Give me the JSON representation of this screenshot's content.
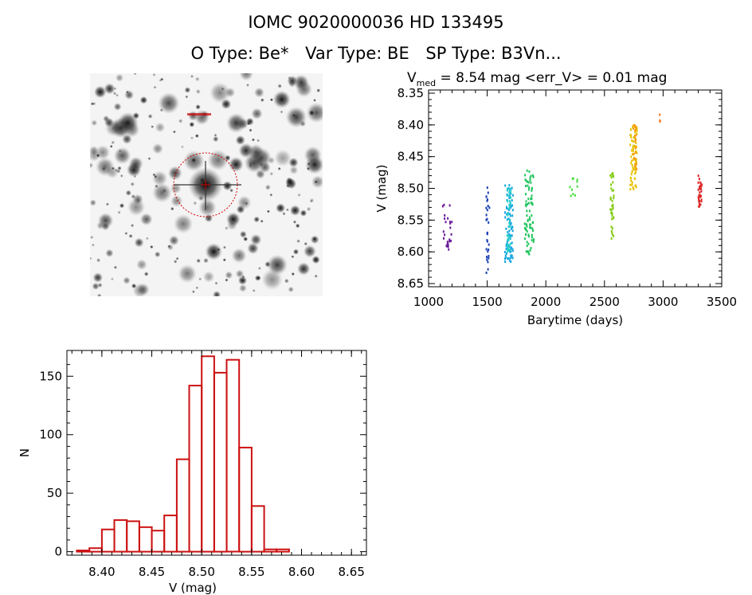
{
  "header": {
    "title": "IOMC 9020000036    HD 133495",
    "o_type": "O Type: Be*",
    "var_type": "Var Type: BE",
    "sp_type": "SP Type: B3Vn..."
  },
  "image_panel": {
    "description_icon": "star-field-thumbnail-icon",
    "circle_color": "#d00000"
  },
  "chart_data": [
    {
      "type": "scatter",
      "title_v": "V",
      "title_sub": "med",
      "title_rest": " = 8.54 mag <err_V> = 0.01 mag",
      "xlabel": "Barytime (days)",
      "ylabel": "V (mag)",
      "xlim": [
        1000,
        3500
      ],
      "ylim": [
        8.655,
        8.345
      ],
      "xticks": [
        1000,
        1500,
        2000,
        2500,
        3000,
        3500
      ],
      "yticks": [
        8.35,
        8.4,
        8.45,
        8.5,
        8.55,
        8.6,
        8.65
      ],
      "groups": [
        {
          "x": [
            1120,
            1200
          ],
          "y": [
            8.515,
            8.6
          ],
          "color": "#6a1b9a",
          "n": 25
        },
        {
          "x": [
            1490,
            1520
          ],
          "y": [
            8.495,
            8.635
          ],
          "color": "#1a3fb5",
          "n": 30
        },
        {
          "x": [
            1650,
            1720
          ],
          "y": [
            8.495,
            8.62
          ],
          "color": "#13a6e0",
          "n": 90
        },
        {
          "x": [
            1670,
            1700
          ],
          "y": [
            8.5,
            8.6
          ],
          "color": "#2ad0c8",
          "n": 40
        },
        {
          "x": [
            1820,
            1900
          ],
          "y": [
            8.47,
            8.605
          ],
          "color": "#22c55e",
          "n": 80
        },
        {
          "x": [
            2200,
            2270
          ],
          "y": [
            8.48,
            8.525
          ],
          "color": "#4ade40",
          "n": 10
        },
        {
          "x": [
            2550,
            2580
          ],
          "y": [
            8.475,
            8.58
          ],
          "color": "#84cc16",
          "n": 40
        },
        {
          "x": [
            2720,
            2780
          ],
          "y": [
            8.4,
            8.505
          ],
          "color": "#e6c200",
          "n": 70
        },
        {
          "x": [
            2740,
            2775
          ],
          "y": [
            8.4,
            8.47
          ],
          "color": "#f59e0b",
          "n": 25
        },
        {
          "x": [
            2960,
            2980
          ],
          "y": [
            8.37,
            8.4
          ],
          "color": "#f97316",
          "n": 3
        },
        {
          "x": [
            3300,
            3330
          ],
          "y": [
            8.48,
            8.53
          ],
          "color": "#dc2626",
          "n": 30
        }
      ]
    },
    {
      "type": "bar",
      "xlabel": "V (mag)",
      "ylabel": "N",
      "xlim": [
        8.365,
        8.665
      ],
      "ylim": [
        -3,
        172
      ],
      "xticks": [
        8.4,
        8.45,
        8.5,
        8.55,
        8.6,
        8.65
      ],
      "yticks": [
        0,
        50,
        100,
        150
      ],
      "bin_start": 8.375,
      "bin_width": 0.0125,
      "values": [
        1,
        3,
        19,
        27,
        26,
        21,
        18,
        31,
        79,
        142,
        167,
        153,
        164,
        89,
        39,
        2,
        2,
        0
      ],
      "color": "#cc1111"
    }
  ]
}
